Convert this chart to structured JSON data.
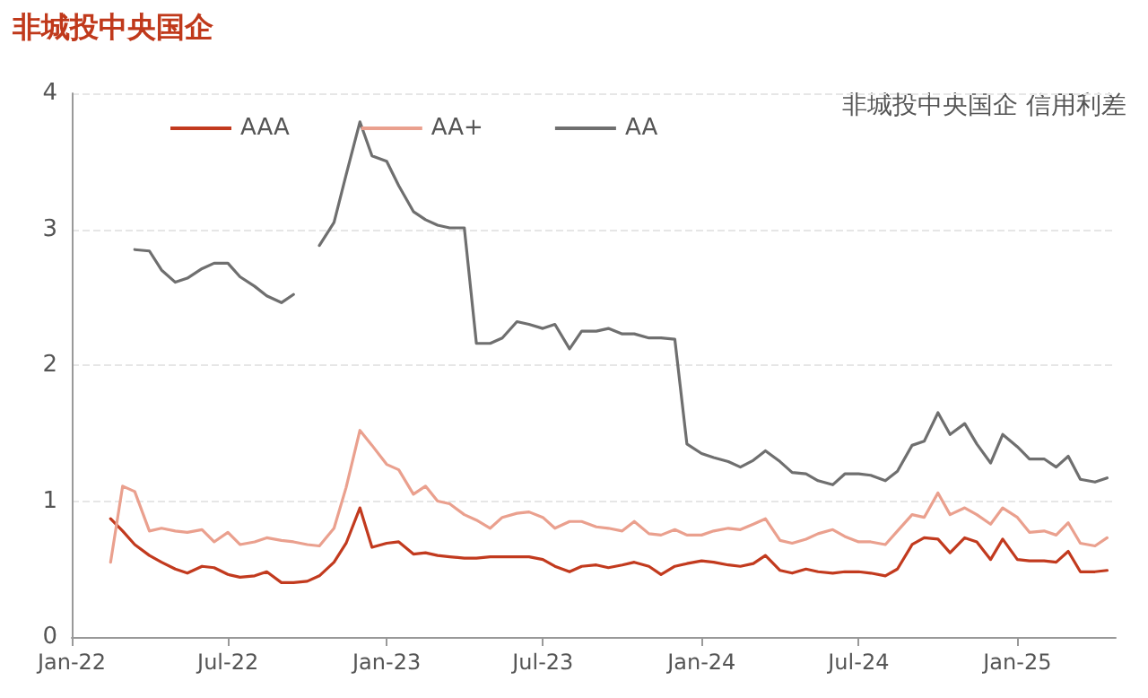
{
  "chart_data": {
    "type": "line",
    "title": "非城投中央国企",
    "annotations": [
      "非城投中央国企 信用利差"
    ],
    "x": [
      "2022-02-15",
      "2022-03-01",
      "2022-03-15",
      "2022-04-01",
      "2022-04-15",
      "2022-05-01",
      "2022-05-15",
      "2022-06-01",
      "2022-06-15",
      "2022-07-01",
      "2022-07-15",
      "2022-08-01",
      "2022-08-15",
      "2022-09-01",
      "2022-09-15",
      "2022-10-01",
      "2022-10-15",
      "2022-11-01",
      "2022-11-15",
      "2022-12-01",
      "2022-12-15",
      "2023-01-01",
      "2023-01-15",
      "2023-02-01",
      "2023-02-15",
      "2023-03-01",
      "2023-03-15",
      "2023-04-01",
      "2023-04-15",
      "2023-05-01",
      "2023-05-15",
      "2023-06-01",
      "2023-06-15",
      "2023-07-01",
      "2023-07-15",
      "2023-08-01",
      "2023-08-15",
      "2023-09-01",
      "2023-09-15",
      "2023-10-01",
      "2023-10-15",
      "2023-11-01",
      "2023-11-15",
      "2023-12-01",
      "2023-12-15",
      "2024-01-01",
      "2024-01-15",
      "2024-02-01",
      "2024-02-15",
      "2024-03-01",
      "2024-03-15",
      "2024-04-01",
      "2024-04-15",
      "2024-05-01",
      "2024-05-15",
      "2024-06-01",
      "2024-06-15",
      "2024-07-01",
      "2024-07-15",
      "2024-08-01",
      "2024-08-15",
      "2024-09-01",
      "2024-09-15",
      "2024-10-01",
      "2024-10-15",
      "2024-11-01",
      "2024-11-15",
      "2024-12-01",
      "2024-12-15",
      "2025-01-01",
      "2025-01-15",
      "2025-02-01",
      "2025-02-15",
      "2025-03-01",
      "2025-03-15",
      "2025-04-01",
      "2025-04-15"
    ],
    "series": [
      {
        "name": "AAA",
        "color": "#c23a1e",
        "values": [
          0.87,
          0.78,
          0.68,
          0.6,
          0.55,
          0.5,
          0.47,
          0.52,
          0.51,
          0.46,
          0.44,
          0.45,
          0.48,
          0.4,
          0.4,
          0.41,
          0.45,
          0.55,
          0.69,
          0.95,
          0.66,
          0.69,
          0.7,
          0.61,
          0.62,
          0.6,
          0.59,
          0.58,
          0.58,
          0.59,
          0.59,
          0.59,
          0.59,
          0.57,
          0.52,
          0.48,
          0.52,
          0.53,
          0.51,
          0.53,
          0.55,
          0.52,
          0.46,
          0.52,
          0.54,
          0.56,
          0.55,
          0.53,
          0.52,
          0.54,
          0.6,
          0.49,
          0.47,
          0.5,
          0.48,
          0.47,
          0.48,
          0.48,
          0.47,
          0.45,
          0.5,
          0.68,
          0.73,
          0.72,
          0.62,
          0.73,
          0.7,
          0.57,
          0.72,
          0.57,
          0.56,
          0.56,
          0.55,
          0.63,
          0.48,
          0.48,
          0.49
        ]
      },
      {
        "name": "AA+",
        "color": "#eaa08e",
        "values": [
          0.55,
          1.11,
          1.07,
          0.78,
          0.8,
          0.78,
          0.77,
          0.79,
          0.7,
          0.77,
          0.68,
          0.7,
          0.73,
          0.71,
          0.7,
          0.68,
          0.67,
          0.8,
          1.1,
          1.52,
          1.41,
          1.27,
          1.23,
          1.05,
          1.11,
          1.0,
          0.98,
          0.9,
          0.86,
          0.8,
          0.88,
          0.91,
          0.92,
          0.88,
          0.8,
          0.85,
          0.85,
          0.81,
          0.8,
          0.78,
          0.85,
          0.76,
          0.75,
          0.79,
          0.75,
          0.75,
          0.78,
          0.8,
          0.79,
          0.83,
          0.87,
          0.71,
          0.69,
          0.72,
          0.76,
          0.79,
          0.74,
          0.7,
          0.7,
          0.68,
          0.78,
          0.9,
          0.88,
          1.06,
          0.9,
          0.95,
          0.9,
          0.83,
          0.95,
          0.88,
          0.77,
          0.78,
          0.75,
          0.84,
          0.69,
          0.67,
          0.73
        ]
      },
      {
        "name": "AA",
        "color": "#6f6f6f",
        "values": [
          null,
          null,
          2.85,
          2.84,
          2.7,
          2.61,
          2.64,
          2.71,
          2.75,
          2.75,
          2.65,
          2.58,
          2.51,
          2.46,
          2.52,
          null,
          2.88,
          3.05,
          3.4,
          3.79,
          3.54,
          3.5,
          3.32,
          3.13,
          3.07,
          3.03,
          3.01,
          3.01,
          2.16,
          2.16,
          2.2,
          2.32,
          2.3,
          2.27,
          2.3,
          2.12,
          2.25,
          2.25,
          2.27,
          2.23,
          2.23,
          2.2,
          2.2,
          2.19,
          1.42,
          1.35,
          1.32,
          1.29,
          1.25,
          1.3,
          1.37,
          1.29,
          1.21,
          1.2,
          1.15,
          1.12,
          1.2,
          1.2,
          1.19,
          1.15,
          1.22,
          1.41,
          1.44,
          1.65,
          1.49,
          1.57,
          1.42,
          1.28,
          1.49,
          1.4,
          1.31,
          1.31,
          1.25,
          1.33,
          1.16,
          1.14,
          1.17
        ]
      }
    ],
    "xlim": [
      "2022-01-01",
      "2025-04-25"
    ],
    "xticks": [
      {
        "value": "2022-01-01",
        "label": "Jan-22"
      },
      {
        "value": "2022-07-01",
        "label": "Jul-22"
      },
      {
        "value": "2023-01-01",
        "label": "Jan-23"
      },
      {
        "value": "2023-07-01",
        "label": "Jul-23"
      },
      {
        "value": "2024-01-01",
        "label": "Jan-24"
      },
      {
        "value": "2024-07-01",
        "label": "Jul-24"
      },
      {
        "value": "2025-01-01",
        "label": "Jan-25"
      }
    ],
    "ylim": [
      0,
      4
    ],
    "yticks": [
      0,
      1,
      2,
      3,
      4
    ],
    "grid": "y",
    "legend": "top left",
    "marker": "none",
    "line_style": "solid"
  }
}
